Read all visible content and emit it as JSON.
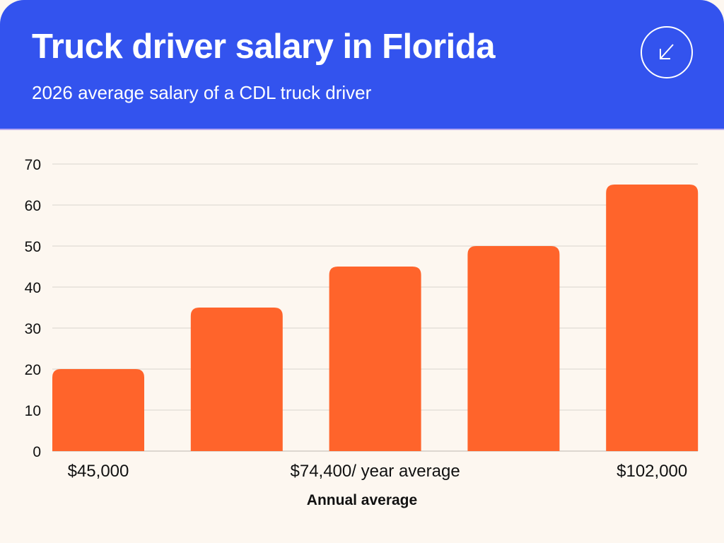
{
  "header": {
    "title": "Truck driver salary in Florida",
    "subtitle": "2026 average salary of a CDL truck driver",
    "icon": "arrow-down-left-icon"
  },
  "chart_data": {
    "type": "bar",
    "title": "Truck driver salary in Florida",
    "subtitle": "2026 average salary of a CDL truck driver",
    "categories": [
      "$45,000",
      "",
      "$74,400/ year average",
      "",
      "$102,000"
    ],
    "values": [
      20,
      35,
      45,
      50,
      65
    ],
    "xlabel": "Annual average",
    "ylabel": "",
    "ylim": [
      0,
      70
    ],
    "yticks": [
      0,
      10,
      20,
      30,
      40,
      50,
      60,
      70
    ],
    "grid": true,
    "legend": "none",
    "colors": {
      "bar": "#ff642b",
      "header": "#3353ee",
      "background": "#fdf7f0",
      "grid": "#d9d4ce"
    }
  }
}
